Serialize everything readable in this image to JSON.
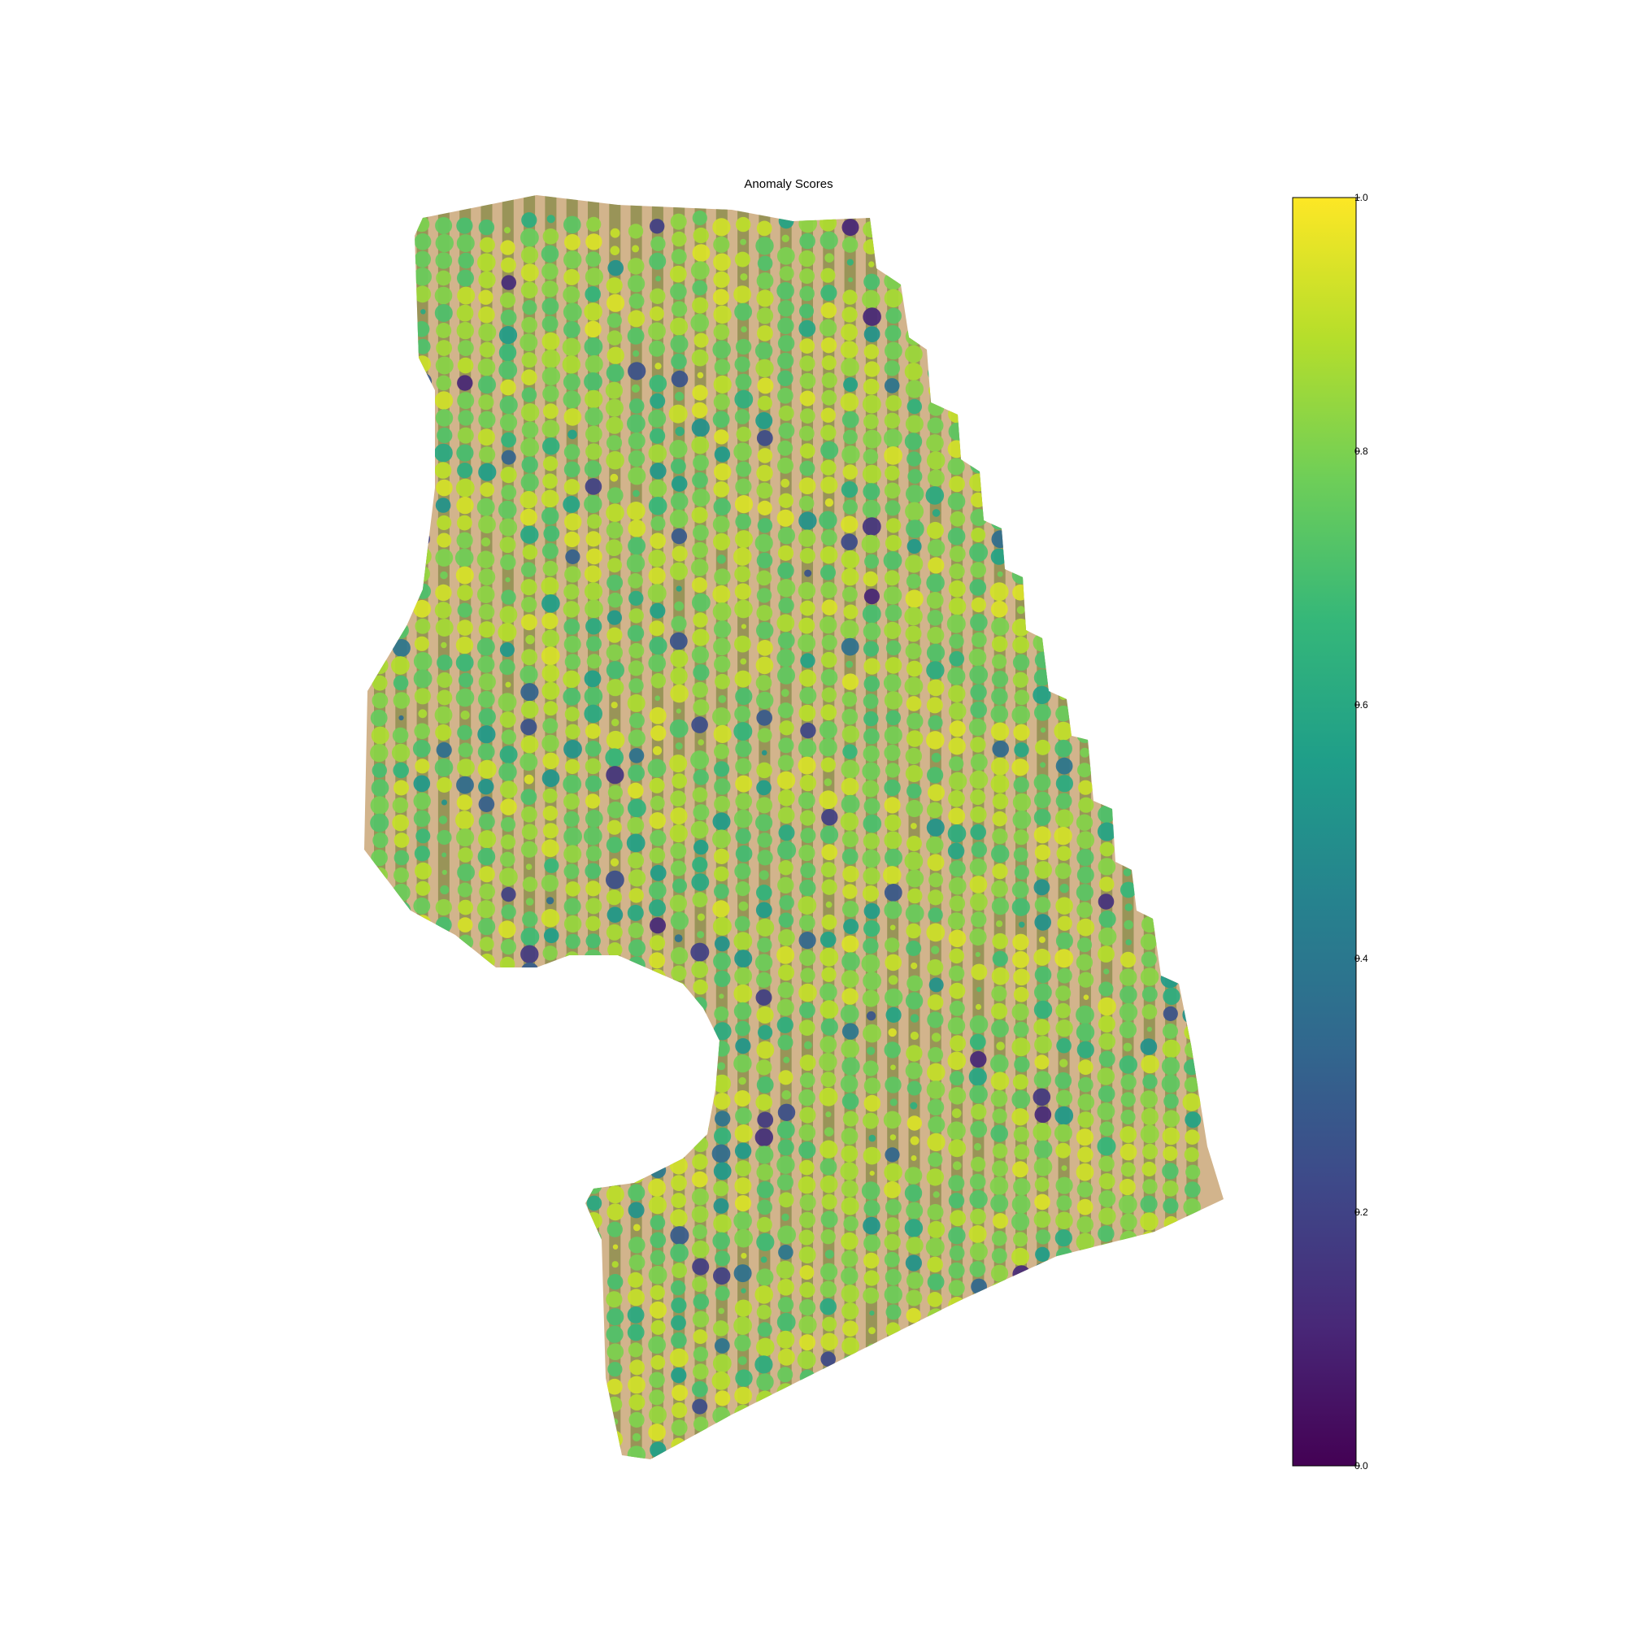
{
  "chart_data": {
    "type": "heatmap",
    "title": "Anomaly Scores",
    "description_layer": "aerial orchard orthophoto with tree crowns coloured by anomaly score",
    "colormap": "viridis",
    "colorbar": {
      "vmin": 0.0,
      "vmax": 1.0,
      "ticks": [
        {
          "value": 0.0,
          "label": "0.0"
        },
        {
          "value": 0.2,
          "label": "0.2"
        },
        {
          "value": 0.4,
          "label": "0.4"
        },
        {
          "value": 0.6,
          "label": "0.6"
        },
        {
          "value": 0.8,
          "label": "0.8"
        },
        {
          "value": 1.0,
          "label": "1.0"
        }
      ],
      "position": "right"
    },
    "score_distribution": {
      "typical_range": [
        0.7,
        0.95
      ],
      "low_outliers_range": [
        0.1,
        0.4
      ]
    },
    "grid": false,
    "axes_visible": false
  },
  "colors": {
    "viridis": [
      "#440154",
      "#482878",
      "#3e4989",
      "#31688e",
      "#26828e",
      "#1f9e89",
      "#35b779",
      "#6ece58",
      "#b5de2b",
      "#fde725"
    ],
    "ground": "#d2b48c",
    "ground_dark": "#6b7a2e",
    "background": "#ffffff"
  }
}
